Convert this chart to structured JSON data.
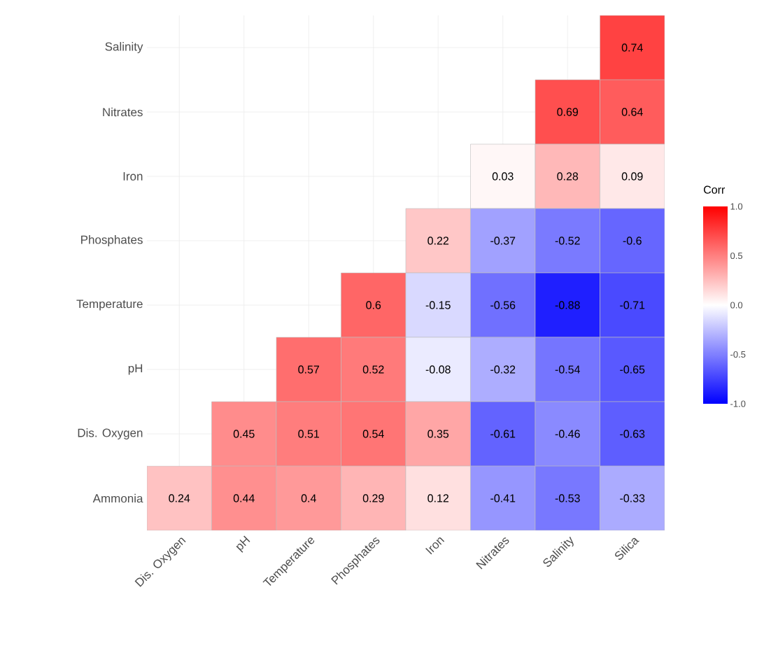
{
  "chart_data": {
    "type": "heatmap",
    "categories": [
      "Dis. Oxygen",
      "pH",
      "Temperature",
      "Phosphates",
      "Iron",
      "Nitrates",
      "Salinity",
      "Silica"
    ],
    "y_categories": [
      "Salinity",
      "Nitrates",
      "Iron",
      "Phosphates",
      "Temperature",
      "pH",
      "Dis. Oxygen",
      "Ammonia"
    ],
    "cells": [
      [
        null,
        null,
        null,
        null,
        null,
        null,
        null,
        0.74
      ],
      [
        null,
        null,
        null,
        null,
        null,
        null,
        0.69,
        0.64
      ],
      [
        null,
        null,
        null,
        null,
        null,
        0.03,
        0.28,
        0.09
      ],
      [
        null,
        null,
        null,
        null,
        0.22,
        -0.37,
        -0.52,
        -0.6
      ],
      [
        null,
        null,
        null,
        0.6,
        -0.15,
        -0.56,
        -0.88,
        -0.71
      ],
      [
        null,
        null,
        0.57,
        0.52,
        -0.08,
        -0.32,
        -0.54,
        -0.65
      ],
      [
        null,
        0.45,
        0.51,
        0.54,
        0.35,
        -0.61,
        -0.46,
        -0.63
      ],
      [
        0.24,
        0.44,
        0.4,
        0.29,
        0.12,
        -0.41,
        -0.53,
        -0.33
      ]
    ],
    "clabel": "Corr",
    "clim": [
      -1,
      1
    ],
    "cticks": [
      {
        "value": -1,
        "label": "-1.0"
      },
      {
        "value": -0.5,
        "label": "-0.5"
      },
      {
        "value": 0,
        "label": "0.0"
      },
      {
        "value": 0.5,
        "label": "0.5"
      },
      {
        "value": 1,
        "label": "1.0"
      }
    ],
    "data_labels": true,
    "grid": true
  }
}
